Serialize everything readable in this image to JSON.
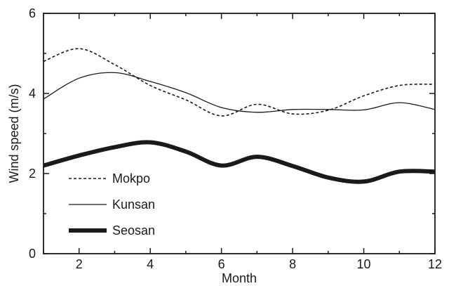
{
  "chart_data": {
    "type": "line",
    "xlabel": "Month",
    "ylabel": "Wind speed (m/s)",
    "xlim": [
      1,
      12
    ],
    "ylim": [
      0,
      6
    ],
    "xticks": [
      2,
      4,
      6,
      8,
      10,
      12
    ],
    "yticks": [
      0,
      2,
      4,
      6
    ],
    "grid": false,
    "legend_position": "bottom-left",
    "series": [
      {
        "name": "Mokpo",
        "style": "dashed",
        "color": "#1a1a1a",
        "x": [
          1,
          2,
          3,
          4,
          5,
          6,
          7,
          8,
          9,
          10,
          11,
          12
        ],
        "y": [
          4.8,
          5.12,
          4.72,
          4.2,
          3.84,
          3.44,
          3.73,
          3.49,
          3.58,
          3.94,
          4.2,
          4.23
        ]
      },
      {
        "name": "Kunsan",
        "style": "thin",
        "color": "#1a1a1a",
        "x": [
          1,
          2,
          3,
          4,
          5,
          6,
          7,
          8,
          9,
          10,
          11,
          12
        ],
        "y": [
          3.86,
          4.38,
          4.52,
          4.3,
          4.02,
          3.65,
          3.53,
          3.6,
          3.6,
          3.59,
          3.77,
          3.6
        ]
      },
      {
        "name": "Seosan",
        "style": "thick",
        "color": "#1a1a1a",
        "x": [
          1,
          2,
          3,
          4,
          5,
          6,
          7,
          8,
          9,
          10,
          11,
          12
        ],
        "y": [
          2.2,
          2.45,
          2.66,
          2.78,
          2.55,
          2.2,
          2.42,
          2.19,
          1.9,
          1.8,
          2.05,
          2.05
        ]
      }
    ]
  }
}
